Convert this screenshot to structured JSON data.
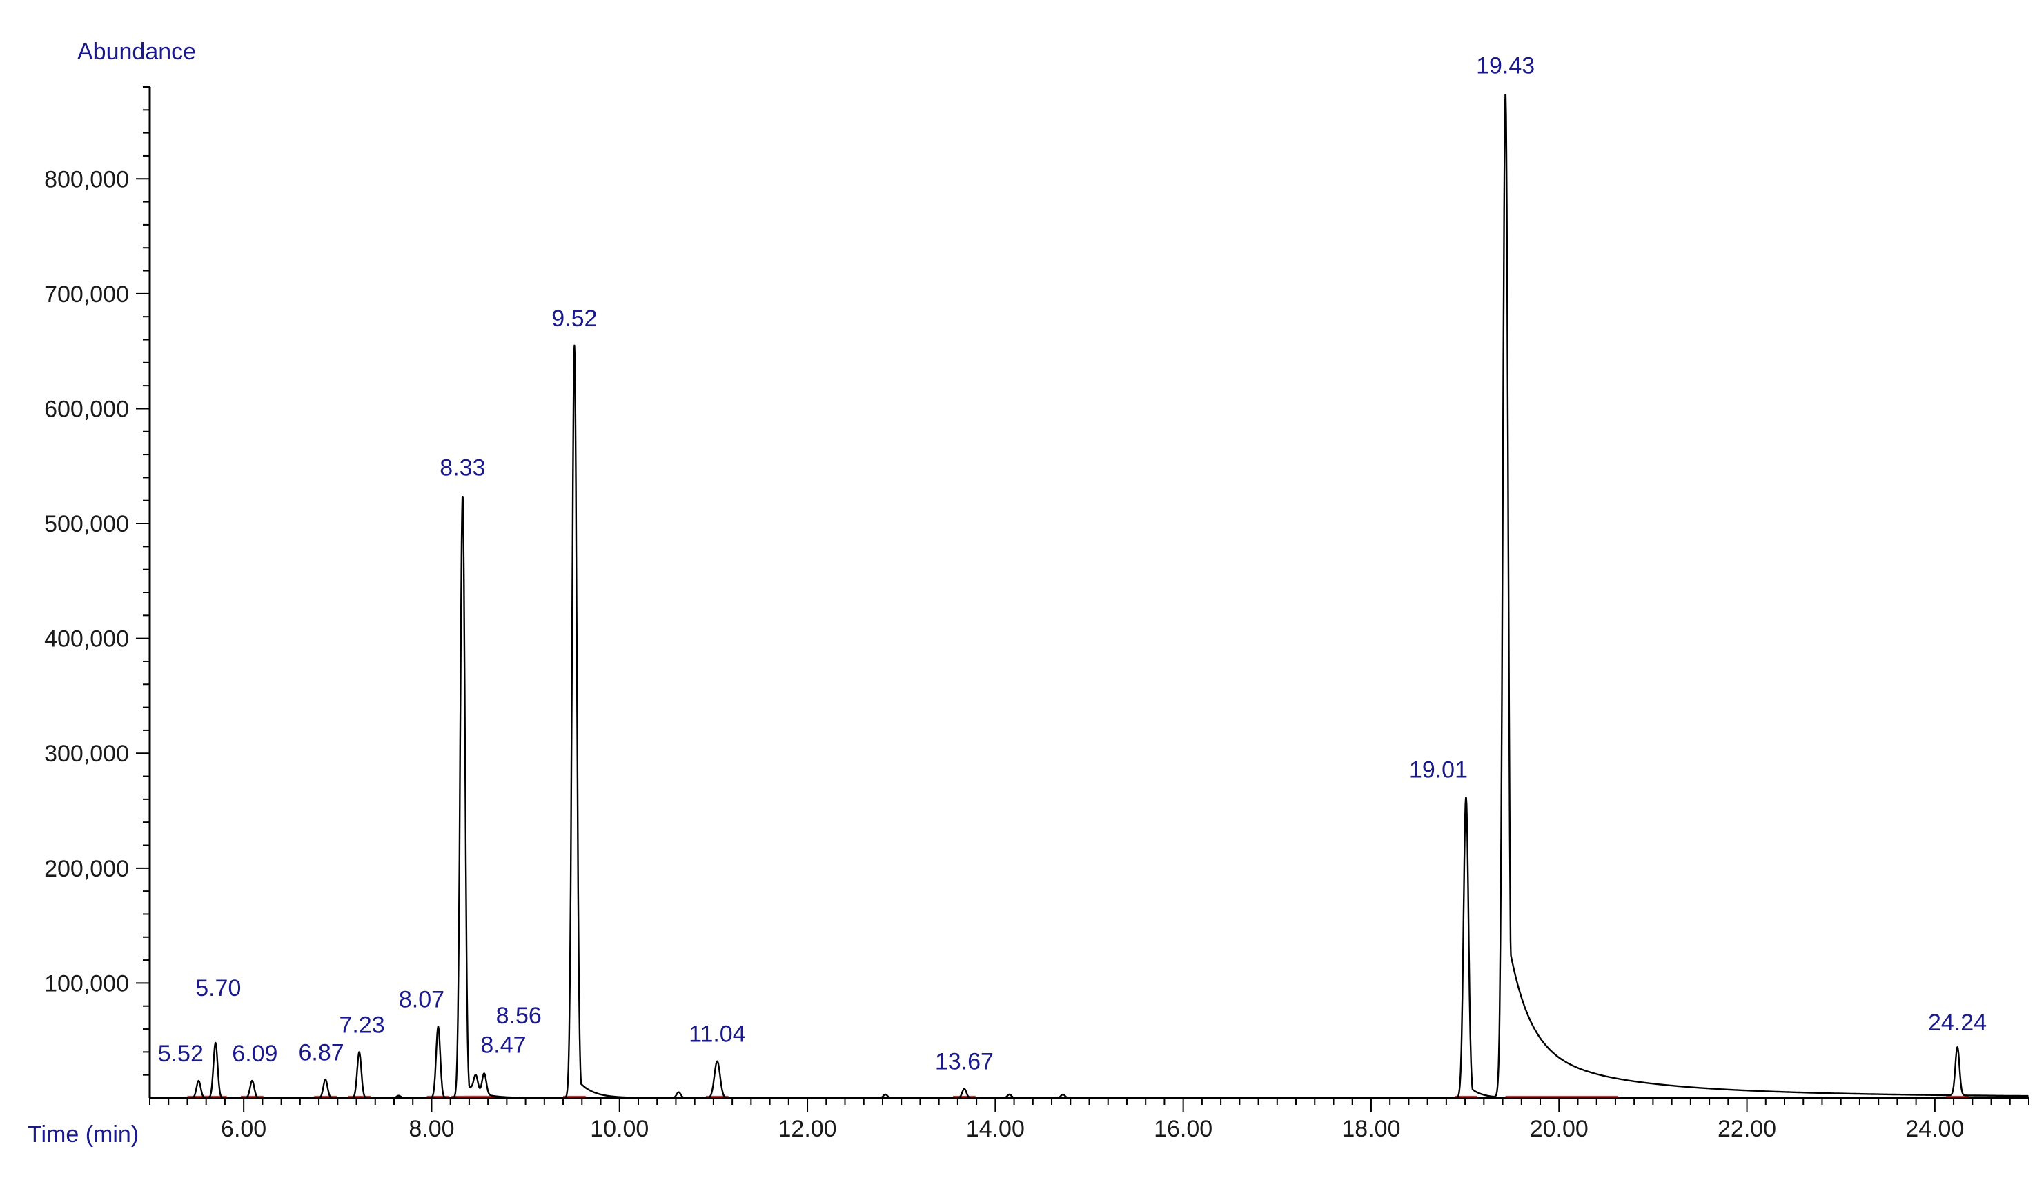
{
  "chart_data": {
    "type": "line",
    "ylabel": "Abundance",
    "xlabel": "Time (min)",
    "xlim": [
      5.0,
      25.0
    ],
    "ylim": [
      0,
      880000
    ],
    "x_major_ticks": [
      6,
      8,
      10,
      12,
      14,
      16,
      18,
      20,
      22,
      24
    ],
    "x_tick_labels": [
      "6.00",
      "8.00",
      "10.00",
      "12.00",
      "14.00",
      "16.00",
      "18.00",
      "20.00",
      "22.00",
      "24.00"
    ],
    "y_major_ticks": [
      100000,
      200000,
      300000,
      400000,
      500000,
      600000,
      700000,
      800000
    ],
    "y_tick_labels": [
      "100,000",
      "200,000",
      "300,000",
      "400,000",
      "500,000",
      "600,000",
      "700,000",
      "800,000"
    ],
    "grid": false,
    "line_color": "#000000",
    "label_color": "#1a1a8c",
    "baseline_color": "#e03030",
    "peaks": [
      {
        "x": 5.52,
        "y": 15000,
        "label": "5.52"
      },
      {
        "x": 5.7,
        "y": 48000,
        "label": "5.70"
      },
      {
        "x": 6.09,
        "y": 15000,
        "label": "6.09"
      },
      {
        "x": 6.87,
        "y": 16000,
        "label": "6.87"
      },
      {
        "x": 7.23,
        "y": 40000,
        "label": "7.23"
      },
      {
        "x": 8.07,
        "y": 62000,
        "label": "8.07"
      },
      {
        "x": 8.33,
        "y": 525000,
        "label": "8.33"
      },
      {
        "x": 8.47,
        "y": 14000,
        "label": "8.47"
      },
      {
        "x": 8.56,
        "y": 18000,
        "label": "8.56"
      },
      {
        "x": 9.52,
        "y": 655000,
        "label": "9.52"
      },
      {
        "x": 11.04,
        "y": 32000,
        "label": "11.04"
      },
      {
        "x": 13.67,
        "y": 8000,
        "label": "13.67"
      },
      {
        "x": 19.01,
        "y": 262000,
        "label": "19.01"
      },
      {
        "x": 19.43,
        "y": 875000,
        "label": "19.43"
      },
      {
        "x": 24.24,
        "y": 42000,
        "label": "24.24"
      }
    ],
    "minor_peaks": [
      {
        "x": 7.65,
        "y": 2000
      },
      {
        "x": 10.63,
        "y": 5000
      },
      {
        "x": 12.83,
        "y": 3000
      },
      {
        "x": 14.15,
        "y": 3000
      },
      {
        "x": 14.72,
        "y": 3000
      }
    ]
  }
}
